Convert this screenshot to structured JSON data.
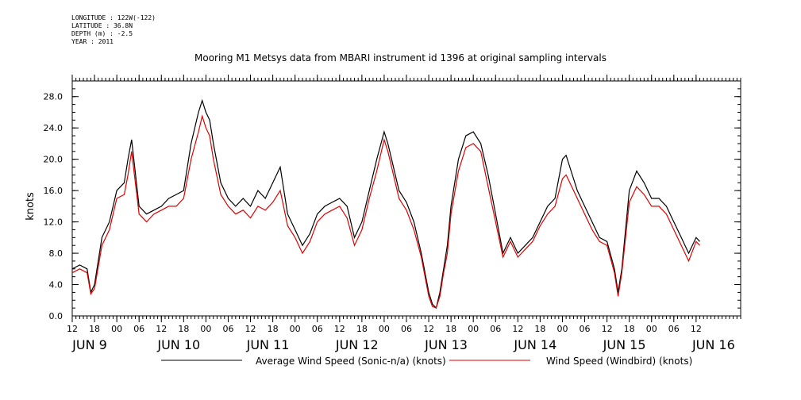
{
  "meta": {
    "longitude": "LONGITUDE : 122W(-122)",
    "latitude": "LATITUDE : 36.8N",
    "depth": "DEPTH (m) : -2.5",
    "year": "YEAR : 2011"
  },
  "chart_data": {
    "type": "line",
    "title": "Mooring M1 Metsys data from MBARI instrument id 1396 at original sampling intervals",
    "ylabel": "knots",
    "xlabel": "",
    "ylim": [
      0,
      30
    ],
    "xlim": [
      0,
      180
    ],
    "x_unit": "hours from JUN 9 12:00",
    "yticks": [
      "0.0",
      "4.0",
      "8.0",
      "12.0",
      "16.0",
      "20.0",
      "24.0",
      "28.0"
    ],
    "yticks_values": [
      0,
      4,
      8,
      12,
      16,
      20,
      24,
      28
    ],
    "xticks": [
      {
        "hour": 0,
        "label": "12"
      },
      {
        "hour": 6,
        "label": "18"
      },
      {
        "hour": 12,
        "label": "00"
      },
      {
        "hour": 18,
        "label": "06"
      },
      {
        "hour": 24,
        "label": "12"
      },
      {
        "hour": 30,
        "label": "18"
      },
      {
        "hour": 36,
        "label": "00"
      },
      {
        "hour": 42,
        "label": "06"
      },
      {
        "hour": 48,
        "label": "12"
      },
      {
        "hour": 54,
        "label": "18"
      },
      {
        "hour": 60,
        "label": "00"
      },
      {
        "hour": 66,
        "label": "06"
      },
      {
        "hour": 72,
        "label": "12"
      },
      {
        "hour": 78,
        "label": "18"
      },
      {
        "hour": 84,
        "label": "00"
      },
      {
        "hour": 90,
        "label": "06"
      },
      {
        "hour": 96,
        "label": "12"
      },
      {
        "hour": 102,
        "label": "18"
      },
      {
        "hour": 108,
        "label": "00"
      },
      {
        "hour": 114,
        "label": "06"
      },
      {
        "hour": 120,
        "label": "12"
      },
      {
        "hour": 126,
        "label": "18"
      },
      {
        "hour": 132,
        "label": "00"
      },
      {
        "hour": 138,
        "label": "06"
      },
      {
        "hour": 144,
        "label": "12"
      },
      {
        "hour": 150,
        "label": "18"
      },
      {
        "hour": 156,
        "label": "00"
      },
      {
        "hour": 162,
        "label": "06"
      },
      {
        "hour": 168,
        "label": "12"
      }
    ],
    "day_labels": [
      {
        "hour": 0,
        "label": "JUN  9"
      },
      {
        "hour": 24,
        "label": "JUN 10"
      },
      {
        "hour": 48,
        "label": "JUN 11"
      },
      {
        "hour": 72,
        "label": "JUN 12"
      },
      {
        "hour": 96,
        "label": "JUN 13"
      },
      {
        "hour": 120,
        "label": "JUN 14"
      },
      {
        "hour": 144,
        "label": "JUN 15"
      },
      {
        "hour": 168,
        "label": "JUN 16"
      }
    ],
    "series": [
      {
        "name": "Average Wind Speed (Sonic-n/a) (knots)",
        "color": "#000000",
        "x": [
          0,
          2,
          4,
          5,
          6,
          8,
          10,
          12,
          14,
          15,
          16,
          18,
          20,
          22,
          24,
          26,
          28,
          30,
          32,
          34,
          35,
          36,
          37,
          38,
          40,
          42,
          44,
          46,
          48,
          50,
          52,
          54,
          56,
          58,
          60,
          62,
          64,
          66,
          68,
          70,
          72,
          74,
          76,
          78,
          80,
          82,
          84,
          85,
          86,
          88,
          90,
          92,
          94,
          96,
          97,
          98,
          99,
          100,
          101,
          102,
          104,
          106,
          108,
          110,
          112,
          114,
          116,
          118,
          120,
          122,
          124,
          126,
          128,
          130,
          132,
          133,
          134,
          136,
          138,
          140,
          142,
          144,
          146,
          147,
          148,
          150,
          152,
          154,
          156,
          158,
          160,
          162,
          164,
          166,
          168,
          169
        ],
        "y": [
          6.0,
          6.5,
          6.0,
          3.0,
          4.0,
          10.0,
          12.0,
          16.0,
          17.0,
          20.0,
          22.5,
          14.0,
          13.0,
          13.5,
          14.0,
          15.0,
          15.5,
          16.0,
          22.0,
          26.0,
          27.5,
          26.0,
          25.0,
          22.0,
          17.0,
          15.0,
          14.0,
          15.0,
          14.0,
          16.0,
          15.0,
          17.0,
          19.0,
          13.0,
          11.0,
          9.0,
          10.5,
          13.0,
          14.0,
          14.5,
          15.0,
          14.0,
          10.0,
          12.0,
          16.0,
          20.0,
          23.5,
          22.0,
          20.0,
          16.0,
          14.5,
          12.0,
          8.0,
          3.0,
          1.5,
          1.0,
          3.0,
          6.0,
          9.0,
          14.0,
          20.0,
          23.0,
          23.5,
          22.0,
          18.0,
          13.0,
          8.0,
          10.0,
          8.0,
          9.0,
          10.0,
          12.0,
          14.0,
          15.0,
          20.0,
          20.5,
          19.0,
          16.0,
          14.0,
          12.0,
          10.0,
          9.5,
          6.0,
          3.0,
          6.0,
          16.0,
          18.5,
          17.0,
          15.0,
          15.0,
          14.0,
          12.0,
          10.0,
          8.0,
          10.0,
          9.5
        ]
      },
      {
        "name": "Wind Speed (Windbird) (knots)",
        "color": "#e00000",
        "x": [
          0,
          2,
          4,
          5,
          6,
          8,
          10,
          12,
          14,
          15,
          16,
          18,
          20,
          22,
          24,
          26,
          28,
          30,
          32,
          34,
          35,
          36,
          37,
          38,
          40,
          42,
          44,
          46,
          48,
          50,
          52,
          54,
          56,
          58,
          60,
          62,
          64,
          66,
          68,
          70,
          72,
          74,
          76,
          78,
          80,
          82,
          84,
          85,
          86,
          88,
          90,
          92,
          94,
          96,
          97,
          98,
          99,
          100,
          101,
          102,
          104,
          106,
          108,
          110,
          112,
          114,
          116,
          118,
          120,
          122,
          124,
          126,
          128,
          130,
          132,
          133,
          134,
          136,
          138,
          140,
          142,
          144,
          146,
          147,
          148,
          150,
          152,
          154,
          156,
          158,
          160,
          162,
          164,
          166,
          168,
          169
        ],
        "y": [
          5.5,
          6.0,
          5.5,
          2.8,
          3.5,
          9.0,
          11.0,
          15.0,
          15.5,
          18.0,
          21.0,
          13.0,
          12.0,
          13.0,
          13.5,
          14.0,
          14.0,
          15.0,
          20.0,
          23.5,
          25.5,
          24.0,
          23.0,
          20.0,
          15.5,
          14.0,
          13.0,
          13.5,
          12.5,
          14.0,
          13.5,
          14.5,
          16.0,
          11.5,
          10.0,
          8.0,
          9.5,
          12.0,
          13.0,
          13.5,
          14.0,
          12.5,
          9.0,
          11.0,
          15.0,
          18.5,
          22.5,
          21.0,
          19.0,
          15.0,
          13.5,
          11.0,
          7.5,
          2.5,
          1.2,
          1.0,
          2.5,
          5.5,
          8.0,
          13.0,
          18.5,
          21.5,
          22.0,
          21.0,
          16.5,
          12.0,
          7.5,
          9.5,
          7.5,
          8.5,
          9.5,
          11.5,
          13.0,
          14.0,
          17.5,
          18.0,
          17.0,
          15.0,
          13.0,
          11.0,
          9.5,
          9.0,
          5.5,
          2.5,
          5.5,
          14.5,
          16.5,
          15.5,
          14.0,
          14.0,
          13.0,
          11.0,
          9.0,
          7.0,
          9.5,
          9.0
        ]
      }
    ],
    "legend_placement": "bottom"
  }
}
